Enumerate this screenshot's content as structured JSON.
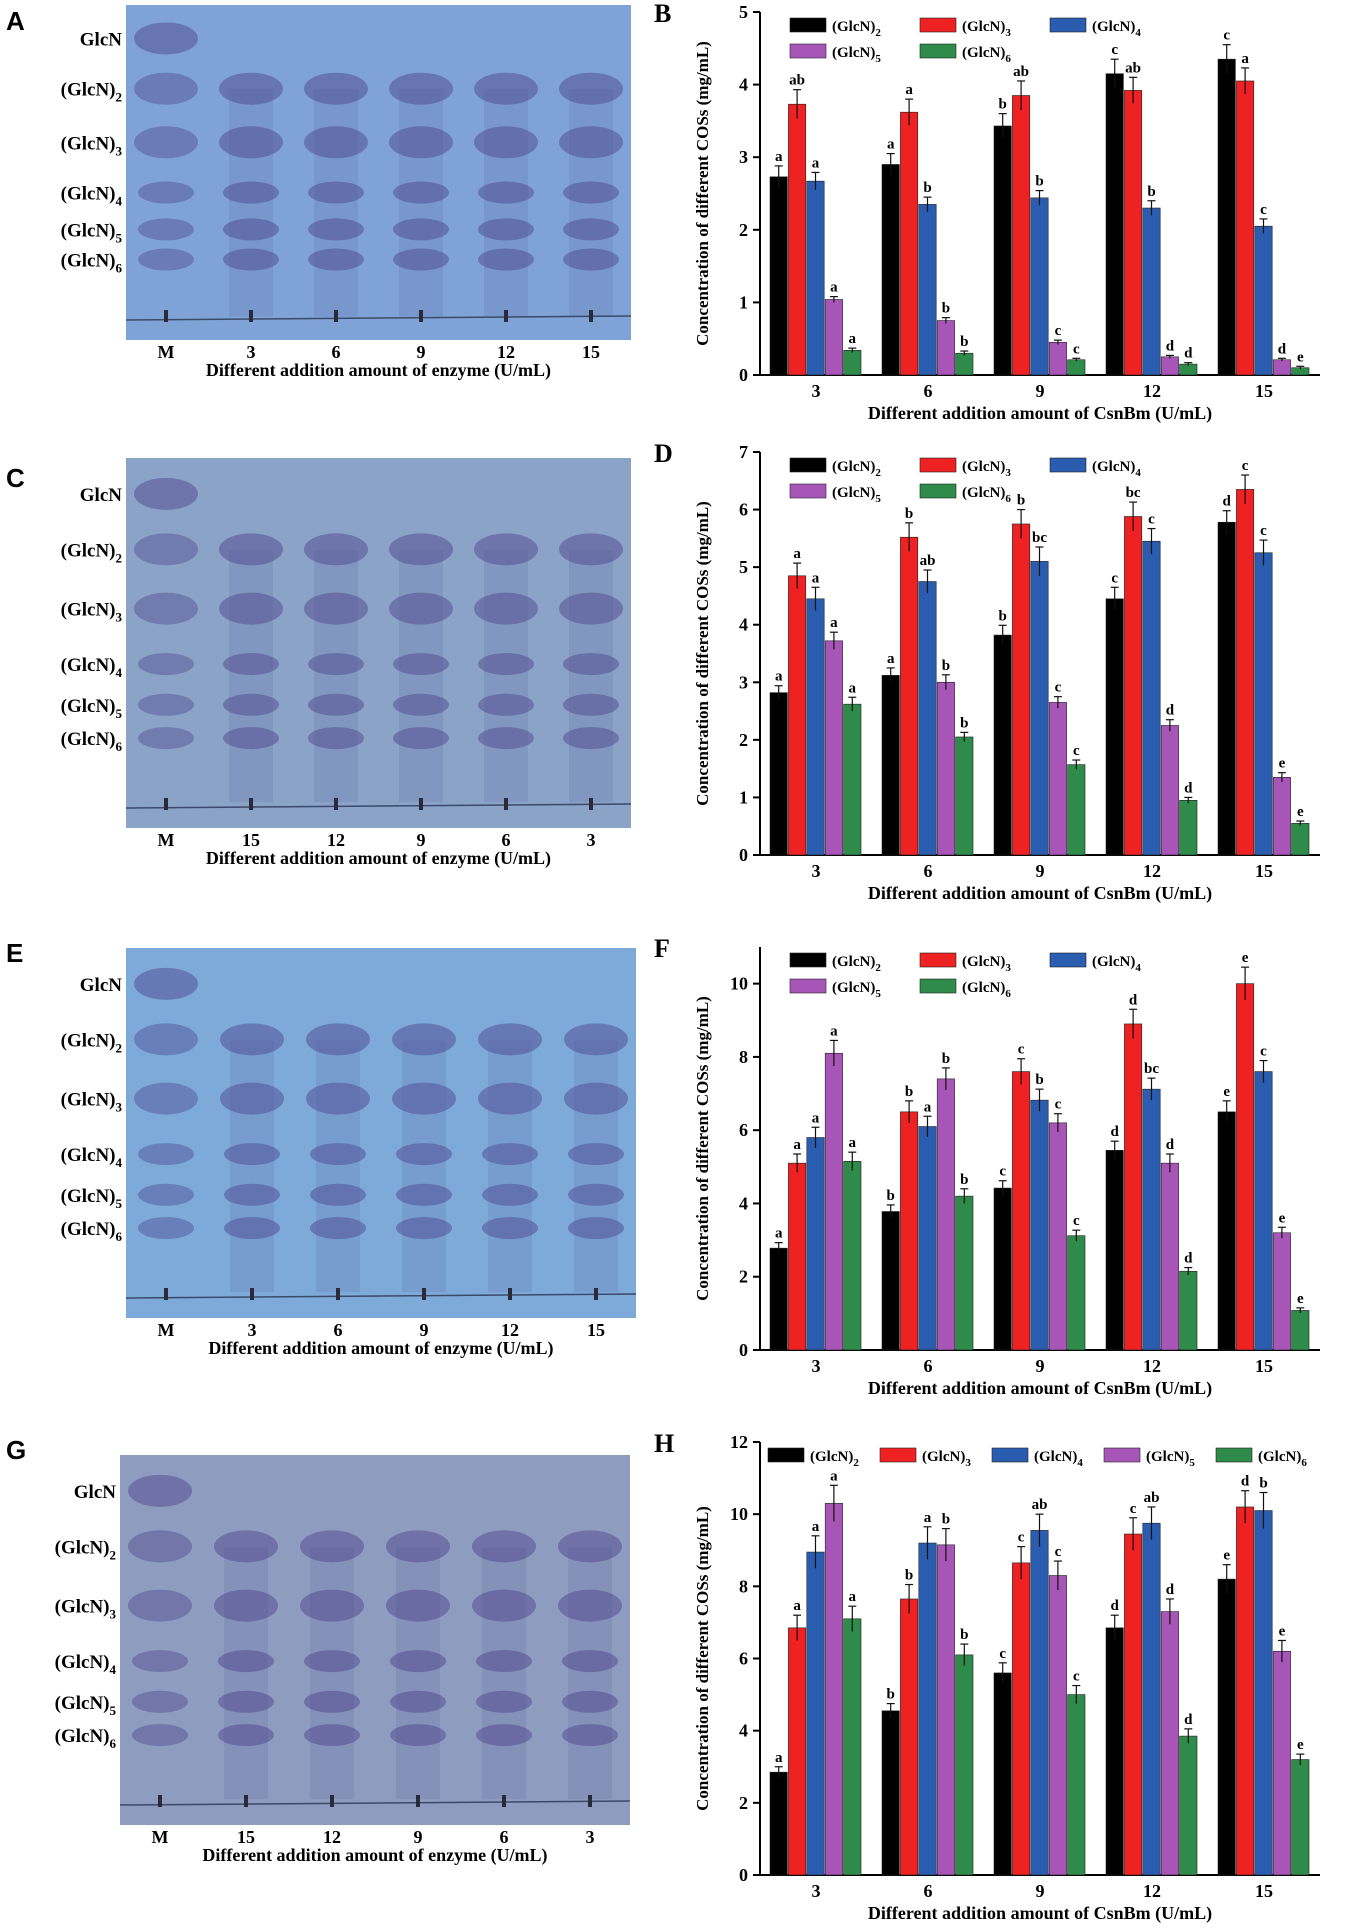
{
  "panels": {
    "A": {
      "letter": "A",
      "xlabel": "Different addition amount of enzyme (U/mL)",
      "lanes": [
        "M",
        "3",
        "6",
        "9",
        "12",
        "15"
      ],
      "bands": [
        "GlcN",
        "(GlcN)2",
        "(GlcN)3",
        "(GlcN)4",
        "(GlcN)5",
        "(GlcN)6"
      ],
      "bg": "#7fa3d6"
    },
    "C": {
      "letter": "C",
      "xlabel": "Different addition amount of enzyme (U/mL)",
      "lanes": [
        "M",
        "15",
        "12",
        "9",
        "6",
        "3"
      ],
      "bands": [
        "GlcN",
        "(GlcN)2",
        "(GlcN)3",
        "(GlcN)4",
        "(GlcN)5",
        "(GlcN)6"
      ],
      "bg": "#8aa3c6"
    },
    "E": {
      "letter": "E",
      "xlabel": "Different addition amount of enzyme (U/mL)",
      "lanes": [
        "M",
        "3",
        "6",
        "9",
        "12",
        "15"
      ],
      "bands": [
        "GlcN",
        "(GlcN)2",
        "(GlcN)3",
        "(GlcN)4",
        "(GlcN)5",
        "(GlcN)6"
      ],
      "bg": "#7eaad9"
    },
    "G": {
      "letter": "G",
      "xlabel": "Different addition amount of enzyme (U/mL)",
      "lanes": [
        "M",
        "15",
        "12",
        "9",
        "6",
        "3"
      ],
      "bands": [
        "GlcN",
        "(GlcN)2",
        "(GlcN)3",
        "(GlcN)4",
        "(GlcN)5",
        "(GlcN)6"
      ],
      "bg": "#8d9cbf"
    }
  },
  "colors": {
    "(GlcN)2": "#000000",
    "(GlcN)3": "#ee2222",
    "(GlcN)4": "#2a5db0",
    "(GlcN)5": "#a855b8",
    "(GlcN)6": "#2e8b4a",
    "band": "#4b3f8a"
  },
  "chart_data": [
    {
      "panel": "B",
      "type": "bar",
      "categories": [
        "3",
        "6",
        "9",
        "12",
        "15"
      ],
      "xlabel": "Different addition amount of CsnBm (U/mL)",
      "ylabel": "Concentration of different COSs (mg/mL)",
      "ylim": [
        0,
        5
      ],
      "yticks": [
        0,
        1,
        2,
        3,
        4,
        5
      ],
      "legend": "top, 3+2 rows",
      "series": [
        {
          "name": "(GlcN)2",
          "values": [
            2.73,
            2.9,
            3.43,
            4.15,
            4.35
          ],
          "errors": [
            0.15,
            0.15,
            0.17,
            0.2,
            0.2
          ],
          "labels": [
            "a",
            "a",
            "b",
            "c",
            "c"
          ]
        },
        {
          "name": "(GlcN)3",
          "values": [
            3.73,
            3.62,
            3.85,
            3.92,
            4.05
          ],
          "errors": [
            0.2,
            0.18,
            0.2,
            0.18,
            0.18
          ],
          "labels": [
            "ab",
            "a",
            "ab",
            "ab",
            "a"
          ]
        },
        {
          "name": "(GlcN)4",
          "values": [
            2.67,
            2.35,
            2.44,
            2.3,
            2.05
          ],
          "errors": [
            0.12,
            0.1,
            0.1,
            0.1,
            0.1
          ],
          "labels": [
            "a",
            "b",
            "b",
            "b",
            "c"
          ]
        },
        {
          "name": "(GlcN)5",
          "values": [
            1.04,
            0.75,
            0.45,
            0.25,
            0.21
          ],
          "errors": [
            0.04,
            0.04,
            0.03,
            0.02,
            0.02
          ],
          "labels": [
            "a",
            "b",
            "c",
            "d",
            "d"
          ]
        },
        {
          "name": "(GlcN)6",
          "values": [
            0.34,
            0.3,
            0.21,
            0.15,
            0.1
          ],
          "errors": [
            0.03,
            0.03,
            0.02,
            0.02,
            0.02
          ],
          "labels": [
            "a",
            "b",
            "c",
            "d",
            "e"
          ]
        }
      ]
    },
    {
      "panel": "D",
      "type": "bar",
      "categories": [
        "3",
        "6",
        "9",
        "12",
        "15"
      ],
      "xlabel": "Different addition amount of CsnBm (U/mL)",
      "ylabel": "Concentration of different COSs (mg/mL)",
      "ylim": [
        0,
        7
      ],
      "yticks": [
        0,
        1,
        2,
        3,
        4,
        5,
        6,
        7
      ],
      "legend": "top, 3+2 rows",
      "series": [
        {
          "name": "(GlcN)2",
          "values": [
            2.82,
            3.12,
            3.82,
            4.45,
            5.78
          ],
          "errors": [
            0.12,
            0.13,
            0.17,
            0.2,
            0.2
          ],
          "labels": [
            "a",
            "a",
            "b",
            "c",
            "d"
          ]
        },
        {
          "name": "(GlcN)3",
          "values": [
            4.85,
            5.52,
            5.75,
            5.88,
            6.35
          ],
          "errors": [
            0.22,
            0.25,
            0.25,
            0.25,
            0.25
          ],
          "labels": [
            "a",
            "b",
            "b",
            "bc",
            "c"
          ]
        },
        {
          "name": "(GlcN)4",
          "values": [
            4.45,
            4.75,
            5.1,
            5.45,
            5.25
          ],
          "errors": [
            0.2,
            0.2,
            0.25,
            0.22,
            0.22
          ],
          "labels": [
            "a",
            "ab",
            "bc",
            "c",
            "c"
          ]
        },
        {
          "name": "(GlcN)5",
          "values": [
            3.72,
            3.0,
            2.65,
            2.25,
            1.35
          ],
          "errors": [
            0.15,
            0.13,
            0.1,
            0.1,
            0.08
          ],
          "labels": [
            "a",
            "b",
            "c",
            "d",
            "e"
          ]
        },
        {
          "name": "(GlcN)6",
          "values": [
            2.62,
            2.05,
            1.57,
            0.95,
            0.55
          ],
          "errors": [
            0.12,
            0.08,
            0.08,
            0.05,
            0.04
          ],
          "labels": [
            "a",
            "b",
            "c",
            "d",
            "e"
          ]
        }
      ]
    },
    {
      "panel": "F",
      "type": "bar",
      "categories": [
        "3",
        "6",
        "9",
        "12",
        "15"
      ],
      "xlabel": "Different addition amount of CsnBm (U/mL)",
      "ylabel": "Concentration of different COSs (mg/mL)",
      "ylim": [
        0,
        11
      ],
      "yticks": [
        0,
        2,
        4,
        6,
        8,
        10
      ],
      "legend": "top, 3+2 rows",
      "series": [
        {
          "name": "(GlcN)2",
          "values": [
            2.78,
            3.78,
            4.42,
            5.45,
            6.5
          ],
          "errors": [
            0.15,
            0.18,
            0.2,
            0.25,
            0.3
          ],
          "labels": [
            "a",
            "b",
            "c",
            "d",
            "e"
          ]
        },
        {
          "name": "(GlcN)3",
          "values": [
            5.1,
            6.5,
            7.6,
            8.9,
            10.0
          ],
          "errors": [
            0.25,
            0.3,
            0.35,
            0.4,
            0.45
          ],
          "labels": [
            "a",
            "b",
            "c",
            "d",
            "e"
          ]
        },
        {
          "name": "(GlcN)4",
          "values": [
            5.8,
            6.1,
            6.82,
            7.12,
            7.6
          ],
          "errors": [
            0.28,
            0.28,
            0.3,
            0.3,
            0.3
          ],
          "labels": [
            "a",
            "a",
            "b",
            "bc",
            "c"
          ]
        },
        {
          "name": "(GlcN)5",
          "values": [
            8.1,
            7.4,
            6.2,
            5.1,
            3.2
          ],
          "errors": [
            0.35,
            0.3,
            0.25,
            0.25,
            0.15
          ],
          "labels": [
            "a",
            "b",
            "c",
            "d",
            "e"
          ]
        },
        {
          "name": "(GlcN)6",
          "values": [
            5.15,
            4.2,
            3.12,
            2.15,
            1.08
          ],
          "errors": [
            0.25,
            0.2,
            0.15,
            0.1,
            0.07
          ],
          "labels": [
            "a",
            "b",
            "c",
            "d",
            "e"
          ]
        }
      ]
    },
    {
      "panel": "H",
      "type": "bar",
      "categories": [
        "3",
        "6",
        "9",
        "12",
        "15"
      ],
      "xlabel": "Different addition amount of CsnBm (U/mL)",
      "ylabel": "Concentration of different COSs (mg/mL)",
      "ylim": [
        0,
        12
      ],
      "yticks": [
        0,
        2,
        4,
        6,
        8,
        10,
        12
      ],
      "legend": "top, 1 row",
      "series": [
        {
          "name": "(GlcN)2",
          "values": [
            2.85,
            4.55,
            5.6,
            6.85,
            8.2
          ],
          "errors": [
            0.15,
            0.2,
            0.28,
            0.35,
            0.4
          ],
          "labels": [
            "a",
            "b",
            "c",
            "d",
            "e"
          ]
        },
        {
          "name": "(GlcN)3",
          "values": [
            6.85,
            7.65,
            8.65,
            9.45,
            10.2
          ],
          "errors": [
            0.35,
            0.4,
            0.45,
            0.45,
            0.45
          ],
          "labels": [
            "a",
            "b",
            "c",
            "c",
            "d"
          ]
        },
        {
          "name": "(GlcN)4",
          "values": [
            8.95,
            9.2,
            9.55,
            9.75,
            10.1
          ],
          "errors": [
            0.45,
            0.45,
            0.45,
            0.45,
            0.5
          ],
          "labels": [
            "a",
            "a",
            "ab",
            "ab",
            "b"
          ]
        },
        {
          "name": "(GlcN)5",
          "values": [
            10.3,
            9.15,
            8.3,
            7.3,
            6.2
          ],
          "errors": [
            0.5,
            0.45,
            0.4,
            0.35,
            0.3
          ],
          "labels": [
            "a",
            "b",
            "c",
            "d",
            "e"
          ]
        },
        {
          "name": "(GlcN)6",
          "values": [
            7.1,
            6.1,
            5.0,
            3.85,
            3.2
          ],
          "errors": [
            0.35,
            0.3,
            0.25,
            0.2,
            0.15
          ],
          "labels": [
            "a",
            "b",
            "c",
            "d",
            "e"
          ]
        }
      ]
    }
  ]
}
